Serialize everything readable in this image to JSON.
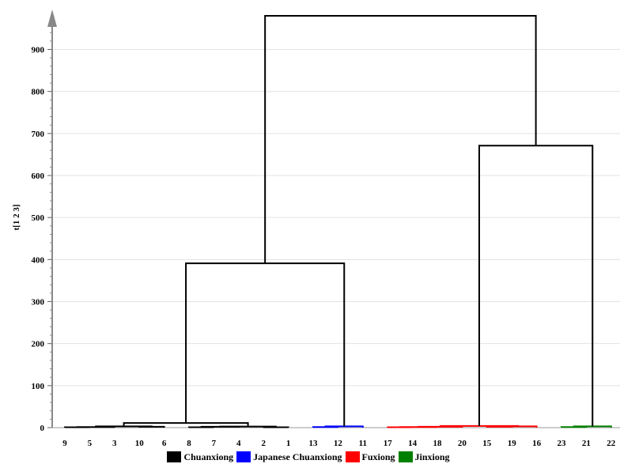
{
  "chart_data": {
    "type": "dendrogram",
    "ylabel": "t[1 2 3]",
    "ylim": [
      0,
      980
    ],
    "yticks": [
      0,
      100,
      200,
      300,
      400,
      500,
      600,
      700,
      800,
      900
    ],
    "leaf_order": [
      "9",
      "5",
      "3",
      "10",
      "6",
      "8",
      "7",
      "4",
      "2",
      "1",
      "13",
      "12",
      "11",
      "17",
      "14",
      "18",
      "20",
      "15",
      "19",
      "16",
      "23",
      "21",
      "22"
    ],
    "grid": true,
    "legend_position": "bottom-center",
    "legend": [
      {
        "label": "Chuanxiong",
        "color": "#000000"
      },
      {
        "label": "Japanese Chuanxiong",
        "color": "#0000ff"
      },
      {
        "label": "Fuxiong",
        "color": "#ff0000"
      },
      {
        "label": "Jinxiong",
        "color": "#008000"
      }
    ],
    "merges": [
      {
        "id": "n1",
        "left": "9",
        "right": "5",
        "height": 1,
        "color": "#000000"
      },
      {
        "id": "n2",
        "left": "n1",
        "right": "3",
        "height": 1.5,
        "color": "#000000"
      },
      {
        "id": "n3",
        "left": "10",
        "right": "6",
        "height": 2,
        "color": "#000000"
      },
      {
        "id": "n4",
        "left": "n2",
        "right": "n3",
        "height": 3,
        "color": "#000000"
      },
      {
        "id": "n5",
        "left": "8",
        "right": "7",
        "height": 1,
        "color": "#000000"
      },
      {
        "id": "n6",
        "left": "n5",
        "right": "4",
        "height": 2,
        "color": "#000000"
      },
      {
        "id": "n7",
        "left": "2",
        "right": "1",
        "height": 1,
        "color": "#000000"
      },
      {
        "id": "n8",
        "left": "n6",
        "right": "n7",
        "height": 2.5,
        "color": "#000000"
      },
      {
        "id": "n9",
        "left": "n4",
        "right": "n8",
        "height": 11,
        "color": "#000000"
      },
      {
        "id": "n10",
        "left": "13",
        "right": "12",
        "height": 1.5,
        "color": "#0000ff"
      },
      {
        "id": "n11",
        "left": "n10",
        "right": "11",
        "height": 3,
        "color": "#0000ff"
      },
      {
        "id": "n12",
        "left": "n9",
        "right": "n11",
        "height": 391,
        "color": "#000000"
      },
      {
        "id": "n13",
        "left": "17",
        "right": "14",
        "height": 1,
        "color": "#ff0000"
      },
      {
        "id": "n14",
        "left": "n13",
        "right": "18",
        "height": 1.5,
        "color": "#ff0000"
      },
      {
        "id": "n15",
        "left": "n14",
        "right": "20",
        "height": 2,
        "color": "#ff0000"
      },
      {
        "id": "n16",
        "left": "15",
        "right": "19",
        "height": 2,
        "color": "#ff0000"
      },
      {
        "id": "n17",
        "left": "n16",
        "right": "16",
        "height": 3,
        "color": "#ff0000"
      },
      {
        "id": "n18",
        "left": "n15",
        "right": "n17",
        "height": 4,
        "color": "#ff0000"
      },
      {
        "id": "n19",
        "left": "23",
        "right": "21",
        "height": 1.5,
        "color": "#008000"
      },
      {
        "id": "n20",
        "left": "n19",
        "right": "22",
        "height": 3,
        "color": "#008000"
      },
      {
        "id": "n21",
        "left": "n18",
        "right": "n20",
        "height": 671,
        "color": "#000000"
      },
      {
        "id": "n22",
        "left": "n12",
        "right": "n21",
        "height": 980,
        "color": "#000000"
      }
    ]
  }
}
